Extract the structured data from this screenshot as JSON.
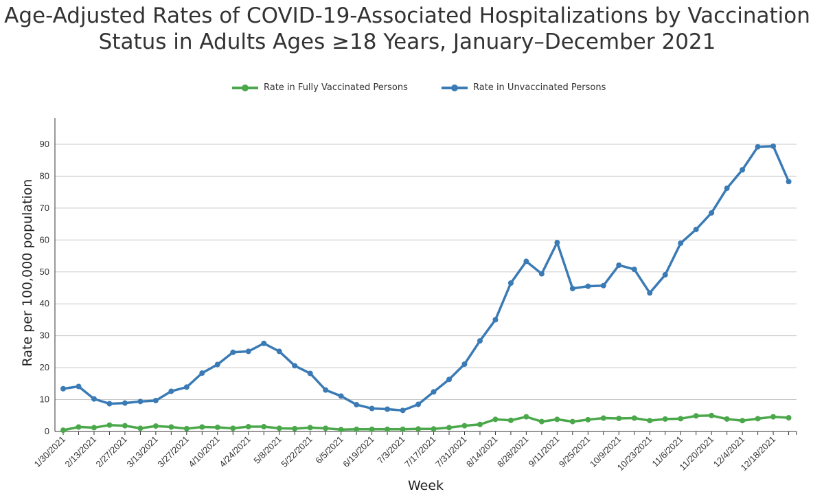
{
  "chart_data": {
    "type": "line",
    "title": "Age-Adjusted Rates of COVID-19-Associated Hospitalizations by Vaccination Status in Adults Ages ≥18 Years, January–December 2021",
    "xlabel": "Week",
    "ylabel": "Rate per 100,000 population",
    "ylim": [
      0,
      98
    ],
    "yticks": [
      0,
      10,
      20,
      30,
      40,
      50,
      60,
      70,
      80,
      90
    ],
    "grid": true,
    "legend_position": "top-center",
    "x": [
      "1/30/2021",
      "2/6/2021",
      "2/13/2021",
      "2/20/2021",
      "2/27/2021",
      "3/6/2021",
      "3/13/2021",
      "3/20/2021",
      "3/27/2021",
      "4/3/2021",
      "4/10/2021",
      "4/17/2021",
      "4/24/2021",
      "5/1/2021",
      "5/8/2021",
      "5/15/2021",
      "5/22/2021",
      "5/29/2021",
      "6/5/2021",
      "6/12/2021",
      "6/19/2021",
      "6/26/2021",
      "7/3/2021",
      "7/10/2021",
      "7/17/2021",
      "7/24/2021",
      "7/31/2021",
      "8/7/2021",
      "8/14/2021",
      "8/21/2021",
      "8/28/2021",
      "9/4/2021",
      "9/11/2021",
      "9/18/2021",
      "9/25/2021",
      "10/2/2021",
      "10/9/2021",
      "10/16/2021",
      "10/23/2021",
      "10/30/2021",
      "11/6/2021",
      "11/13/2021",
      "11/20/2021",
      "11/27/2021",
      "12/4/2021",
      "12/11/2021",
      "12/18/2021",
      "12/25/2021"
    ],
    "xtick_labels": [
      "1/30/2021",
      "2/13/2021",
      "2/27/2021",
      "3/13/2021",
      "3/27/2021",
      "4/10/2021",
      "4/24/2021",
      "5/8/2021",
      "5/22/2021",
      "6/5/2021",
      "6/19/2021",
      "7/3/2021",
      "7/17/2021",
      "7/31/2021",
      "8/14/2021",
      "8/28/2021",
      "9/11/2021",
      "9/25/2021",
      "10/9/2021",
      "10/23/2021",
      "11/6/2021",
      "11/20/2021",
      "12/4/2021",
      "12/18/2021"
    ],
    "series": [
      {
        "name": "Rate in Fully Vaccinated Persons",
        "color": "#4aa84a",
        "values": [
          0.4,
          1.4,
          1.2,
          2.0,
          1.8,
          1.0,
          1.7,
          1.4,
          0.9,
          1.4,
          1.3,
          1.0,
          1.5,
          1.5,
          1.0,
          0.9,
          1.2,
          1.0,
          0.6,
          0.7,
          0.7,
          0.7,
          0.7,
          0.8,
          0.8,
          1.2,
          1.8,
          2.2,
          3.8,
          3.5,
          4.6,
          3.1,
          3.8,
          3.1,
          3.7,
          4.2,
          4.1,
          4.2,
          3.4,
          3.9,
          4.0,
          4.9,
          5.0,
          3.9,
          3.4,
          4.0,
          4.6,
          4.3
        ]
      },
      {
        "name": "Rate in Unvaccinated Persons",
        "color": "#3a7ab5",
        "values": [
          13.4,
          14.1,
          10.2,
          8.7,
          8.9,
          9.4,
          9.7,
          12.6,
          13.9,
          18.3,
          21.0,
          24.8,
          25.1,
          27.6,
          25.1,
          20.6,
          18.2,
          13.0,
          11.1,
          8.4,
          7.2,
          7.0,
          6.6,
          8.5,
          12.4,
          16.3,
          21.1,
          28.4,
          35.0,
          46.5,
          53.3,
          49.4,
          59.2,
          44.8,
          45.5,
          45.7,
          52.1,
          50.8,
          43.4,
          49.1,
          59.0,
          63.3,
          68.5,
          76.2,
          82.0,
          89.2,
          89.4,
          78.3
        ]
      }
    ]
  }
}
